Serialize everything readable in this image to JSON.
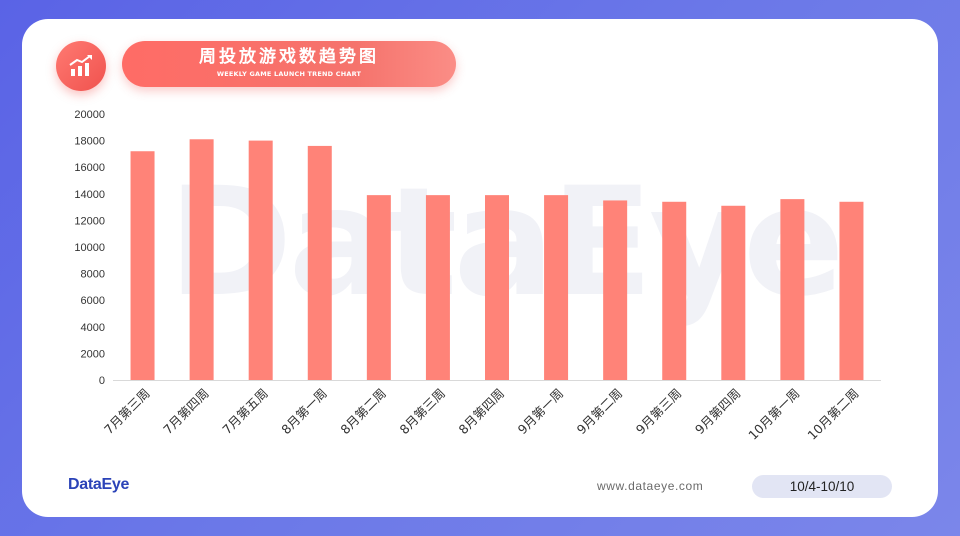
{
  "header": {
    "title": "周投放游戏数趋势图",
    "subtitle": "WEEKLY GAME LAUNCH TREND CHART",
    "icon": "bar-chart-trend-icon"
  },
  "watermark": "DataEye",
  "footer": {
    "brand": "DataEye",
    "website": "www.dataeye.com",
    "date_range": "10/4-10/10"
  },
  "colors": {
    "bar": "#ff8378",
    "accent": "#f0524e",
    "brand": "#2b43b8"
  },
  "chart_data": {
    "type": "bar",
    "title": "周投放游戏数趋势图",
    "xlabel": "",
    "ylabel": "",
    "ylim": [
      0,
      20000
    ],
    "yticks": [
      0,
      2000,
      4000,
      6000,
      8000,
      10000,
      12000,
      14000,
      16000,
      18000,
      20000
    ],
    "grid": false,
    "legend": "none",
    "categories": [
      "7月第三周",
      "7月第四周",
      "7月第五周",
      "8月第一周",
      "8月第二周",
      "8月第三周",
      "8月第四周",
      "9月第一周",
      "9月第二周",
      "9月第三周",
      "9月第四周",
      "10月第一周",
      "10月第二周"
    ],
    "values": [
      17200,
      18100,
      18000,
      17600,
      13900,
      13900,
      13900,
      13900,
      13500,
      13400,
      13100,
      13600,
      13400
    ]
  }
}
